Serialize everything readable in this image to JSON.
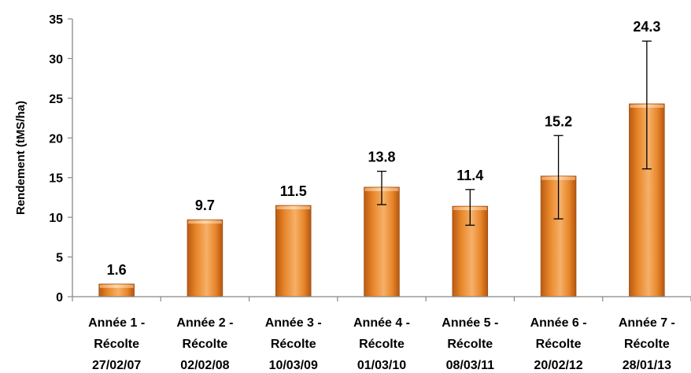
{
  "chart_data": {
    "type": "bar",
    "title": "",
    "xlabel": "",
    "ylabel": "Rendement (tMS/ha)",
    "ylim": [
      0,
      35
    ],
    "yticks": [
      0,
      5,
      10,
      15,
      20,
      25,
      30,
      35
    ],
    "grid": false,
    "legend": "none",
    "bar_color": "#E8862A",
    "categories": [
      [
        "Année 1 -",
        "Récolte",
        "27/02/07"
      ],
      [
        "Année 2 -",
        "Récolte",
        "02/02/08"
      ],
      [
        "Année 3 -",
        "Récolte",
        "10/03/09"
      ],
      [
        "Année 4 -",
        "Récolte",
        "01/03/10"
      ],
      [
        "Année 5 -",
        "Récolte",
        "08/03/11"
      ],
      [
        "Année 6 -",
        "Récolte",
        "20/02/12"
      ],
      [
        "Année 7 -",
        "Récolte",
        "28/01/13"
      ]
    ],
    "values": [
      1.6,
      9.7,
      11.5,
      13.8,
      11.4,
      15.2,
      24.3
    ],
    "data_labels": [
      "1.6",
      "9.7",
      "11.5",
      "13.8",
      "11.4",
      "15.2",
      "24.3"
    ],
    "error_bars": [
      null,
      null,
      null,
      [
        11.6,
        15.8
      ],
      [
        9.0,
        13.5
      ],
      [
        9.8,
        20.3
      ],
      [
        16.1,
        32.2
      ]
    ]
  }
}
